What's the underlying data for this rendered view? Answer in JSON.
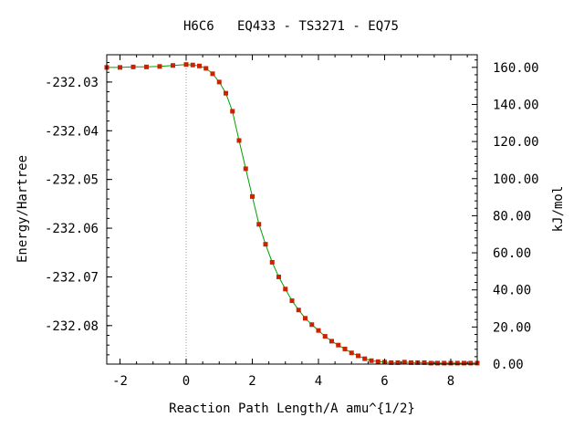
{
  "chart_data": {
    "type": "line",
    "title": "H6C6   EQ433 - TS3271 - EQ75",
    "xlabel": "Reaction Path Length/A amu^{1/2}",
    "ylabel": "Energy/Hartree",
    "ylabel_right": "kJ/mol",
    "xlim": [
      -2.4,
      8.8
    ],
    "ylim": [
      -232.0879,
      -232.0244
    ],
    "ylim_right": [
      0.0,
      166.8
    ],
    "x_ticks": [
      -2,
      0,
      2,
      4,
      6,
      8
    ],
    "x_tick_labels": [
      "-2",
      "0",
      "2",
      "4",
      "6",
      "8"
    ],
    "y_ticks": [
      -232.03,
      -232.04,
      -232.05,
      -232.06,
      -232.07,
      -232.08
    ],
    "y_tick_labels": [
      "-232.03",
      "-232.04",
      "-232.05",
      "-232.06",
      "-232.07",
      "-232.08"
    ],
    "y_right_ticks": [
      0,
      20,
      40,
      60,
      80,
      100,
      120,
      140,
      160
    ],
    "y_right_tick_labels": [
      "0.00",
      "20.00",
      "40.00",
      "60.00",
      "80.00",
      "100.00",
      "120.00",
      "140.00",
      "160.00"
    ],
    "ts_marker_x": 0.0,
    "grid": false,
    "series": [
      {
        "color_line": "#00a000",
        "color_points": "#cc2200",
        "x": [
          -2.4,
          -2.0,
          -1.6,
          -1.2,
          -0.8,
          -0.4,
          0.0,
          0.2,
          0.4,
          0.6,
          0.8,
          1.0,
          1.2,
          1.4,
          1.6,
          1.8,
          2.0,
          2.2,
          2.4,
          2.6,
          2.8,
          3.0,
          3.2,
          3.4,
          3.6,
          3.8,
          4.0,
          4.2,
          4.4,
          4.6,
          4.8,
          5.0,
          5.2,
          5.4,
          5.6,
          5.8,
          6.0,
          6.2,
          6.4,
          6.6,
          6.8,
          7.0,
          7.2,
          7.4,
          7.6,
          7.8,
          8.0,
          8.2,
          8.4,
          8.6,
          8.8
        ],
        "y": [
          -232.027,
          -232.027,
          -232.0269,
          -232.0269,
          -232.0268,
          -232.0266,
          -232.0264,
          -232.0265,
          -232.0267,
          -232.0272,
          -232.0283,
          -232.03,
          -232.0323,
          -232.036,
          -232.042,
          -232.0478,
          -232.0535,
          -232.0592,
          -232.0633,
          -232.067,
          -232.07,
          -232.0725,
          -232.0749,
          -232.0768,
          -232.0785,
          -232.0798,
          -232.081,
          -232.0822,
          -232.0832,
          -232.084,
          -232.0848,
          -232.0856,
          -232.0862,
          -232.0868,
          -232.0872,
          -232.0874,
          -232.0875,
          -232.0876,
          -232.0876,
          -232.0875,
          -232.0876,
          -232.0876,
          -232.0876,
          -232.0877,
          -232.0877,
          -232.0877,
          -232.0877,
          -232.0877,
          -232.0877,
          -232.0877,
          -232.0877
        ]
      }
    ]
  }
}
